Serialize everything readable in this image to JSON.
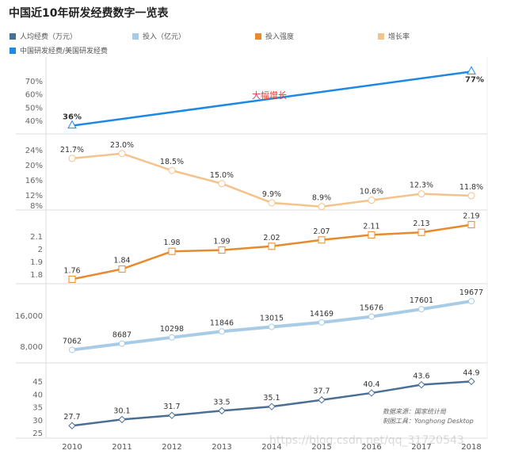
{
  "chart_data": [
    {
      "type": "line",
      "series": [
        {
          "name": "中国研发经费/美国研发经费",
          "values": [
            36,
            77
          ],
          "x": [
            "2010",
            "2018"
          ],
          "labels": [
            "36%",
            "77%"
          ],
          "color": "#1e88e5",
          "marker": "triangle"
        }
      ],
      "yticks": [
        "70%",
        "60%",
        "50%",
        "40%"
      ],
      "ytick_values": [
        70,
        60,
        50,
        40
      ],
      "annotation": "大幅增长",
      "annotation_color": "#e53935"
    },
    {
      "type": "line",
      "series": [
        {
          "name": "增长率",
          "values": [
            21.7,
            23.0,
            18.5,
            15.0,
            9.9,
            8.9,
            10.6,
            12.3,
            11.8
          ],
          "labels": [
            "21.7%",
            "23.0%",
            "18.5%",
            "15.0%",
            "9.9%",
            "8.9%",
            "10.6%",
            "12.3%",
            "11.8%"
          ],
          "color": "#f4c28b",
          "marker": "circle"
        }
      ],
      "yticks": [
        "24%",
        "20%",
        "16%",
        "12%",
        "8%"
      ],
      "ytick_values": [
        24,
        20,
        16,
        12,
        8
      ]
    },
    {
      "type": "line",
      "series": [
        {
          "name": "投入强度",
          "values": [
            1.76,
            1.84,
            1.98,
            1.99,
            2.02,
            2.07,
            2.11,
            2.13,
            2.19
          ],
          "labels": [
            "1.76",
            "1.84",
            "1.98",
            "1.99",
            "2.02",
            "2.07",
            "2.11",
            "2.13",
            "2.19"
          ],
          "color": "#e8892c",
          "marker": "square"
        }
      ],
      "yticks": [
        "2.1",
        "2",
        "1.9",
        "1.8"
      ],
      "ytick_values": [
        2.1,
        2,
        1.9,
        1.8
      ]
    },
    {
      "type": "line",
      "series": [
        {
          "name": "投入（亿元）",
          "values": [
            7062,
            8687,
            10298,
            11846,
            13015,
            14169,
            15676,
            17601,
            19677
          ],
          "labels": [
            "7062",
            "8687",
            "10298",
            "11846",
            "13015",
            "14169",
            "15676",
            "17601",
            "19677"
          ],
          "color": "#a8cbe6",
          "marker": "star"
        }
      ],
      "yticks": [
        "16,000",
        "8,000"
      ],
      "ytick_values": [
        16000,
        8000
      ]
    },
    {
      "type": "line",
      "series": [
        {
          "name": "人均经费（万元）",
          "values": [
            27.7,
            30.1,
            31.7,
            33.5,
            35.1,
            37.7,
            40.4,
            43.6,
            44.9
          ],
          "labels": [
            "27.7",
            "30.1",
            "31.7",
            "33.5",
            "35.1",
            "37.7",
            "40.4",
            "43.6",
            "44.9"
          ],
          "color": "#4a6f96",
          "marker": "diamond"
        }
      ],
      "yticks": [
        "45",
        "40",
        "35",
        "30",
        "25"
      ],
      "ytick_values": [
        45,
        40,
        35,
        30,
        25
      ]
    }
  ],
  "categories": [
    "2010",
    "2011",
    "2012",
    "2013",
    "2014",
    "2015",
    "2016",
    "2017",
    "2018"
  ],
  "title": "中国近10年研发经费数字一览表",
  "legend": [
    {
      "label": "人均经费（万元）",
      "color": "#4a6f96"
    },
    {
      "label": "投入（亿元）",
      "color": "#a8cbe6"
    },
    {
      "label": "投入强度",
      "color": "#e8892c"
    },
    {
      "label": "增长率",
      "color": "#f4c28b"
    },
    {
      "label": "中国研发经费/美国研发经费",
      "color": "#1e88e5"
    }
  ],
  "source": {
    "line1": "数据来源：国家统计局",
    "line2": "制图工具：Yonghong Desktop"
  },
  "watermark": "https://blog.csdn.net/qq_31720543"
}
